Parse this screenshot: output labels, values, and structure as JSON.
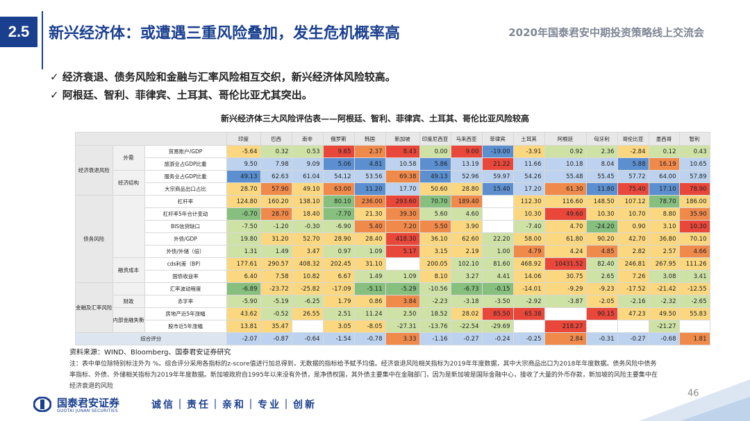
{
  "header": {
    "section": "2.5",
    "title": "新兴经济体：或遭遇三重风险叠加，发生危机概率高",
    "conference": "2020年国泰君安中期投资策略线上交流会"
  },
  "bullets": [
    "✓ 经济衰退、债务风险和金融与汇率风险相互交织，新兴经济体风险较高。",
    "✓ 阿根廷、智利、菲律宾、土耳其、哥伦比亚尤其突出。"
  ],
  "table": {
    "title": "新兴经济体三大风险评估表——阿根廷、智利、菲律宾、土耳其、哥伦比亚风险较高",
    "countries": [
      "印度",
      "巴西",
      "南非",
      "俄罗斯",
      "韩国",
      "新加坡",
      "印度尼西亚",
      "马来西亚",
      "菲律宾",
      "土耳其",
      "阿根廷",
      "匈牙利",
      "哥伦比亚",
      "墨西哥",
      "智利"
    ],
    "categories": {
      "econ": "经济衰退风险",
      "debt": "债务风险",
      "fin": "金融及汇率风险",
      "score": "综合评分"
    },
    "subgroups": {
      "external": "外需",
      "structure": "经济结构",
      "financing": "融资成本",
      "fiscal": "财政",
      "internal": "内部金融失衡"
    },
    "rows": [
      {
        "label": "贸易账户/GDP",
        "values": [
          "-5.64",
          "0.32",
          "0.53",
          "9.65",
          "2.37",
          "8.43",
          "0.00",
          "9.00",
          "-19.00",
          "-3.91",
          "0.92",
          "2.36",
          "-2.84",
          "0.12",
          "0.43"
        ]
      },
      {
        "label": "旅游业占GDP比重",
        "values": [
          "9.50",
          "7.98",
          "9.09",
          "5.06",
          "4.81",
          "10.58",
          "5.86",
          "13.19",
          "21.22",
          "11.66",
          "10.18",
          "8.04",
          "5.88",
          "16.19",
          "10.65"
        ]
      },
      {
        "label": "服务业占GDP比重",
        "values": [
          "49.13",
          "62.63",
          "61.04",
          "54.12",
          "53.56",
          "69.38",
          "49.13",
          "52.96",
          "59.97",
          "54.26",
          "55.48",
          "55.45",
          "57.72",
          "64.00",
          "57.89"
        ]
      },
      {
        "label": "大宗商品出口占比",
        "values": [
          "28.70",
          "57.90",
          "49.10",
          "63.00",
          "11.20",
          "17.70",
          "50.60",
          "28.80",
          "15.40",
          "17.20",
          "61.30",
          "11.80",
          "75.40",
          "17.10",
          "78.90"
        ]
      },
      {
        "label": "杠杆率",
        "values": [
          "124.80",
          "160.20",
          "138.10",
          "80.10",
          "236.00",
          "293.60",
          "70.70",
          "189.40",
          "",
          "112.30",
          "116.60",
          "148.50",
          "107.12",
          "78.70",
          "186.00"
        ]
      },
      {
        "label": "杠杆率5年合计变动",
        "values": [
          "-0.70",
          "28.70",
          "18.40",
          "-7.70",
          "21.30",
          "39.30",
          "5.60",
          "4.60",
          "",
          "10.30",
          "49.60",
          "10.30",
          "10.70",
          "8.80",
          "35.90"
        ]
      },
      {
        "label": "BIS信贷缺口",
        "values": [
          "-7.50",
          "-1.20",
          "-0.30",
          "-6.90",
          "5.40",
          "7.20",
          "5.50",
          "3.90",
          "",
          "-7.40",
          "4.70",
          "-24.20",
          "0.90",
          "3.10",
          "10.30"
        ]
      },
      {
        "label": "外债/GDP",
        "values": [
          "19.80",
          "31.20",
          "52.70",
          "28.90",
          "28.40",
          "418.30",
          "36.10",
          "62.60",
          "22.20",
          "58.00",
          "61.80",
          "90.20",
          "42.70",
          "36.80",
          "70.10"
        ]
      },
      {
        "label": "外债/外储（倍）",
        "values": [
          "1.31",
          "1.49",
          "3.47",
          "0.97",
          "1.09",
          "5.17",
          "3.15",
          "2.19",
          "1.00",
          "4.79",
          "4.24",
          "4.85",
          "2.82",
          "2.57",
          "4.66"
        ]
      },
      {
        "label": "cds利差（BP）",
        "values": [
          "177.61",
          "290.57",
          "408.32",
          "202.45",
          "31.10",
          "",
          "200.05",
          "102.10",
          "81.60",
          "468.92",
          "10431.52",
          "82.40",
          "246.81",
          "267.95",
          "111.26"
        ]
      },
      {
        "label": "国债收益率",
        "values": [
          "6.40",
          "7.58",
          "10.82",
          "6.67",
          "1.49",
          "1.09",
          "8.10",
          "3.27",
          "4.41",
          "14.06",
          "30.75",
          "2.65",
          "7.26",
          "3.08",
          "3.41"
        ]
      },
      {
        "label": "汇率波动程度",
        "values": [
          "-6.89",
          "-23.72",
          "-25.82",
          "-17.09",
          "-5.11",
          "-5.29",
          "-10.56",
          "-6.73",
          "-0.15",
          "-14.01",
          "-9.29",
          "-9.23",
          "-17.52",
          "-21.42",
          "-12.55"
        ]
      },
      {
        "label": "赤字率",
        "values": [
          "-5.90",
          "-5.19",
          "-6.25",
          "1.79",
          "0.86",
          "3.84",
          "-2.23",
          "-3.18",
          "-3.50",
          "-2.92",
          "-3.87",
          "-2.05",
          "-2.16",
          "-2.32",
          "-2.65"
        ]
      },
      {
        "label": "房地产近5年涨幅",
        "values": [
          "43.62",
          "-0.52",
          "26.55",
          "2.51",
          "11.24",
          "2.50",
          "18.52",
          "28.02",
          "85.50",
          "65.38",
          "",
          "90.15",
          "47.23",
          "49.50",
          "55.83"
        ]
      },
      {
        "label": "股市近5年涨幅",
        "values": [
          "13.81",
          "35.47",
          "",
          "3.05",
          "-8.05",
          "-27.31",
          "-13.76",
          "-22.54",
          "-29.69",
          "",
          "218.27",
          "",
          "",
          "-21.27",
          ""
        ]
      },
      {
        "label": "综合评分",
        "values": [
          "-2.07",
          "-0.87",
          "-0.64",
          "-1.54",
          "-0.78",
          "3.33",
          "-1.16",
          "-0.27",
          "-0.24",
          "-0.25",
          "2.84",
          "-0.31",
          "-0.27",
          "-0.68",
          "1.81"
        ]
      }
    ],
    "palette": {
      "red": "#e8473a",
      "orange": "#f08a4b",
      "yellow": "#fbd87f",
      "lightgreen": "#cfe2a6",
      "green": "#86bf7e",
      "blue": "#5b8fd0",
      "lightblue": "#bcd2ef",
      "empty": "#ffffff"
    },
    "colors": [
      [
        "yellow",
        "lightgreen",
        "lightgreen",
        "red",
        "orange",
        "red",
        "lightgreen",
        "red",
        "blue",
        "yellow",
        "lightgreen",
        "lightgreen",
        "yellow",
        "lightgreen",
        "lightgreen"
      ],
      [
        "lightblue",
        "lightblue",
        "lightblue",
        "blue",
        "blue",
        "lightblue",
        "blue",
        "lightblue",
        "red",
        "lightblue",
        "lightblue",
        "lightblue",
        "blue",
        "orange",
        "lightblue"
      ],
      [
        "blue",
        "lightblue",
        "lightblue",
        "lightblue",
        "lightblue",
        "orange",
        "blue",
        "lightblue",
        "lightblue",
        "lightblue",
        "lightblue",
        "lightblue",
        "lightblue",
        "lightblue",
        "lightblue"
      ],
      [
        "yellow",
        "orange",
        "yellow",
        "orange",
        "blue",
        "lightblue",
        "yellow",
        "yellow",
        "blue",
        "lightblue",
        "orange",
        "blue",
        "red",
        "blue",
        "red"
      ],
      [
        "yellow",
        "yellow",
        "yellow",
        "green",
        "orange",
        "red",
        "green",
        "orange",
        "empty",
        "yellow",
        "yellow",
        "yellow",
        "yellow",
        "green",
        "yellow"
      ],
      [
        "green",
        "orange",
        "yellow",
        "green",
        "yellow",
        "orange",
        "lightgreen",
        "lightgreen",
        "empty",
        "yellow",
        "red",
        "yellow",
        "yellow",
        "yellow",
        "orange"
      ],
      [
        "lightgreen",
        "lightgreen",
        "lightgreen",
        "lightgreen",
        "orange",
        "orange",
        "orange",
        "yellow",
        "empty",
        "lightgreen",
        "yellow",
        "green",
        "yellow",
        "yellow",
        "red"
      ],
      [
        "lightgreen",
        "yellow",
        "yellow",
        "yellow",
        "yellow",
        "red",
        "yellow",
        "yellow",
        "lightgreen",
        "yellow",
        "yellow",
        "yellow",
        "yellow",
        "yellow",
        "yellow"
      ],
      [
        "lightgreen",
        "lightgreen",
        "yellow",
        "lightgreen",
        "lightgreen",
        "red",
        "yellow",
        "yellow",
        "lightgreen",
        "orange",
        "yellow",
        "orange",
        "yellow",
        "yellow",
        "orange"
      ],
      [
        "yellow",
        "yellow",
        "yellow",
        "yellow",
        "yellow",
        "empty",
        "yellow",
        "lightgreen",
        "lightgreen",
        "yellow",
        "red",
        "lightgreen",
        "yellow",
        "yellow",
        "yellow"
      ],
      [
        "yellow",
        "yellow",
        "yellow",
        "yellow",
        "lightgreen",
        "lightgreen",
        "yellow",
        "lightgreen",
        "lightgreen",
        "yellow",
        "yellow",
        "lightgreen",
        "yellow",
        "lightgreen",
        "lightgreen"
      ],
      [
        "green",
        "yellow",
        "yellow",
        "yellow",
        "green",
        "green",
        "lightgreen",
        "green",
        "green",
        "yellow",
        "yellow",
        "yellow",
        "yellow",
        "yellow",
        "yellow"
      ],
      [
        "lightgreen",
        "lightgreen",
        "lightgreen",
        "yellow",
        "yellow",
        "orange",
        "lightgreen",
        "lightgreen",
        "lightgreen",
        "lightgreen",
        "lightgreen",
        "yellow",
        "lightgreen",
        "lightgreen",
        "lightgreen"
      ],
      [
        "yellow",
        "lightgreen",
        "yellow",
        "lightgreen",
        "lightgreen",
        "lightgreen",
        "lightgreen",
        "yellow",
        "red",
        "red",
        "empty",
        "red",
        "yellow",
        "yellow",
        "yellow"
      ],
      [
        "yellow",
        "yellow",
        "empty",
        "yellow",
        "yellow",
        "lightgreen",
        "lightgreen",
        "lightgreen",
        "lightgreen",
        "empty",
        "red",
        "empty",
        "empty",
        "lightgreen",
        "empty"
      ],
      [
        "lightblue",
        "lightblue",
        "lightblue",
        "lightblue",
        "lightblue",
        "orange",
        "lightblue",
        "lightblue",
        "lightblue",
        "lightblue",
        "orange",
        "lightblue",
        "lightblue",
        "lightblue",
        "orange"
      ]
    ]
  },
  "source": "资料来源：WIND、Bloomberg、国泰君安证券研究",
  "notes": "注：表中单位除特别标注外为 %。综合评分采用各指标的z-score值进行加总得到，无数据的指标给予赋予均值。经济衰退风险相关指标为2019年年度数据，其中大宗商品出口为2018年年度数据。债务风险中债务率指标、外债、外储相关指标为2019年年度数据。新加坡政府自1995年以来没有外债，是净债权国，其外债主要集中在金融部门，因为是新加坡是国际金融中心，接收了大量的外币存款，新加坡的风险主要集中在经济衰退的风险",
  "footer": {
    "logo_cn": "国泰君安证券",
    "logo_en": "GUOTAI JUNAN SECURITIES",
    "motto": "诚信｜责任｜亲和｜专业｜创新",
    "page": "46"
  }
}
